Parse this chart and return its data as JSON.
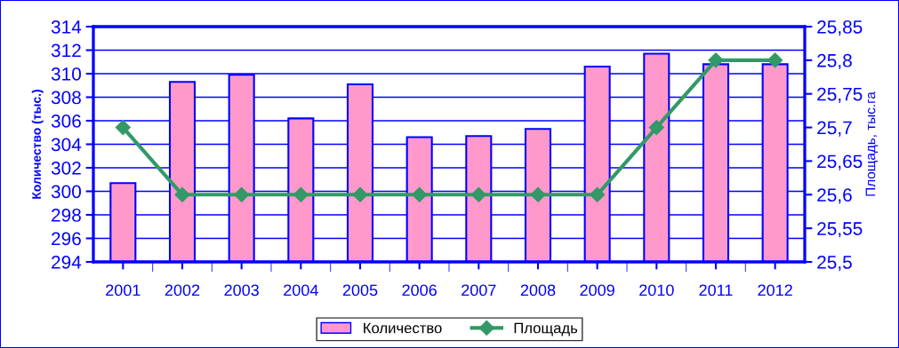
{
  "chart_data": {
    "type": "bar",
    "ylabel": "Количество (тыс.)",
    "y2label": "Площадь, тыс.га",
    "categories": [
      "2001",
      "2002",
      "2003",
      "2004",
      "2005",
      "2006",
      "2007",
      "2008",
      "2009",
      "2010",
      "2011",
      "2012"
    ],
    "series": [
      {
        "name": "Количество",
        "color": "#ff99cc",
        "values": [
          300.7,
          309.3,
          309.9,
          306.2,
          309.1,
          304.6,
          304.7,
          305.3,
          310.6,
          311.7,
          310.8,
          310.8
        ]
      },
      {
        "name": "Площадь",
        "type": "line",
        "axis": "y2",
        "color": "#339966",
        "marker": "diamond",
        "values": [
          25.7,
          25.6,
          25.6,
          25.6,
          25.6,
          25.6,
          25.6,
          25.6,
          25.6,
          25.7,
          25.8,
          25.8
        ]
      }
    ],
    "ylim": [
      294,
      314
    ],
    "yticks": [
      294,
      296,
      298,
      300,
      302,
      304,
      306,
      308,
      310,
      312,
      314
    ],
    "y2lim": [
      25.5,
      25.85
    ],
    "y2ticks": [
      {
        "value": 25.5,
        "label": "25,5"
      },
      {
        "value": 25.55,
        "label": "25,55"
      },
      {
        "value": 25.6,
        "label": "25,6"
      },
      {
        "value": 25.65,
        "label": "25,65"
      },
      {
        "value": 25.7,
        "label": "25,7"
      },
      {
        "value": 25.75,
        "label": "25,75"
      },
      {
        "value": 25.8,
        "label": "25,8"
      },
      {
        "value": 25.85,
        "label": "25,85"
      }
    ],
    "grid": "y",
    "legend": "bottom"
  }
}
